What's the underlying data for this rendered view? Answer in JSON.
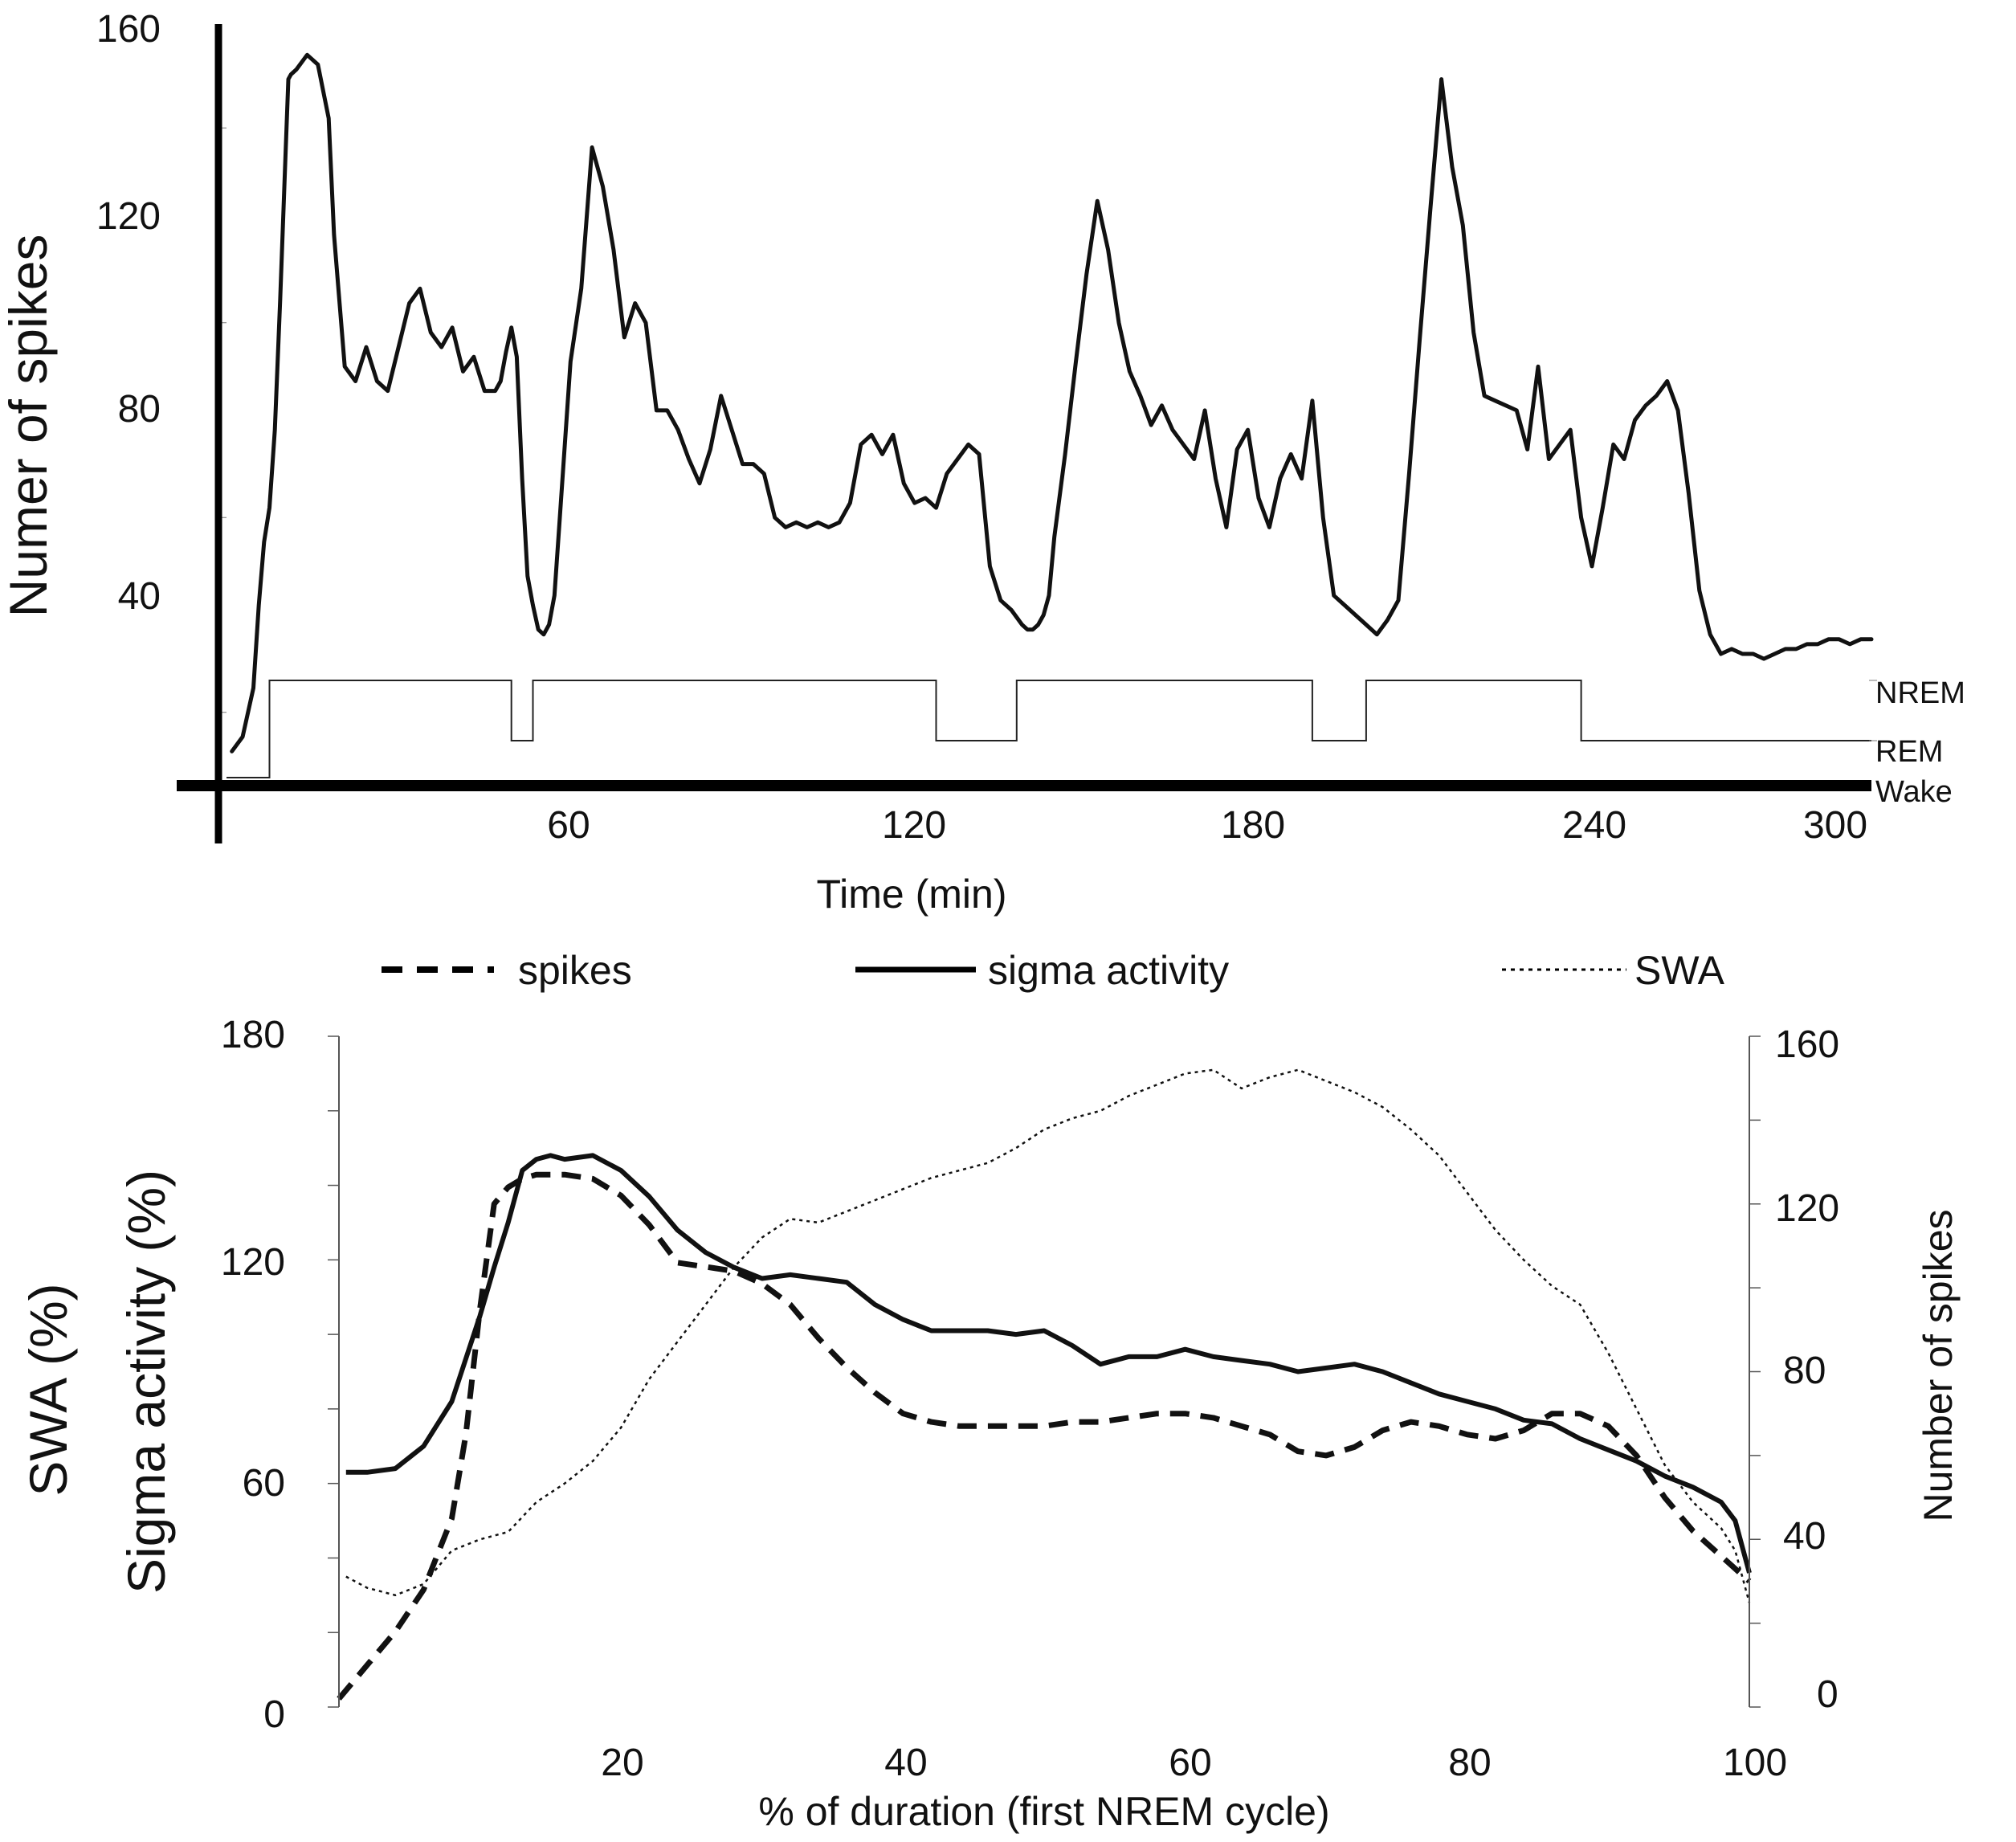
{
  "chart_data": [
    {
      "type": "line",
      "xlabel": "Time (min)",
      "ylabel": "Numer of spikes",
      "xlim": [
        0,
        306
      ],
      "ylim": [
        0,
        160
      ],
      "x_ticks": [
        60,
        120,
        180,
        240,
        300
      ],
      "y_ticks": [
        40,
        80,
        120,
        160
      ],
      "stage_labels": [
        "NREM",
        "REM",
        "Wake"
      ],
      "series": [
        {
          "x": [
            1,
            3,
            5,
            6,
            7,
            8,
            9,
            10,
            11,
            11.5,
            12,
            13,
            15,
            17,
            19,
            20,
            22,
            24,
            26,
            28,
            30,
            32,
            34,
            36,
            38,
            40,
            42,
            44,
            46,
            48,
            50,
            51,
            52,
            53,
            54,
            55,
            56,
            57,
            58,
            59,
            60,
            61,
            62,
            64,
            66,
            68,
            70,
            72,
            74,
            76,
            78,
            80,
            82,
            84,
            86,
            88,
            90,
            92,
            94,
            96,
            98,
            100,
            102,
            104,
            106,
            108,
            110,
            112,
            114,
            116,
            118,
            120,
            122,
            124,
            126,
            128,
            130,
            132,
            134,
            136,
            138,
            140,
            142,
            144,
            146,
            148,
            149,
            150,
            151,
            152,
            153,
            154,
            156,
            158,
            160,
            162,
            164,
            166,
            168,
            170,
            172,
            174,
            176,
            178,
            180,
            182,
            184,
            186,
            188,
            190,
            192,
            194,
            196,
            198,
            200,
            202,
            204,
            206,
            208,
            210,
            212,
            214,
            216,
            218,
            220,
            222,
            224,
            226,
            228,
            230,
            232,
            234,
            236,
            238,
            240,
            242,
            244,
            246,
            248,
            250,
            252,
            254,
            256,
            258,
            260,
            262,
            264,
            266,
            268,
            270,
            272,
            274,
            276,
            278,
            280,
            282,
            284,
            286,
            288,
            290,
            292,
            294,
            296,
            298,
            300,
            302,
            304,
            306
          ],
          "values": [
            12,
            15,
            25,
            42,
            55,
            62,
            78,
            105,
            135,
            150,
            151,
            152,
            155,
            153,
            142,
            118,
            91,
            88,
            95,
            88,
            86,
            95,
            104,
            107,
            98,
            95,
            99,
            90,
            93,
            86,
            86,
            88,
            94,
            99,
            93,
            68,
            48,
            42,
            37,
            36,
            38,
            44,
            60,
            92,
            107,
            136,
            128,
            115,
            97,
            104,
            100,
            82,
            82,
            78,
            72,
            67,
            74,
            85,
            78,
            71,
            71,
            69,
            60,
            58,
            59,
            58,
            59,
            58,
            59,
            63,
            75,
            77,
            73,
            77,
            67,
            63,
            64,
            62,
            69,
            72,
            75,
            73,
            50,
            43,
            41,
            38,
            37,
            37,
            38,
            40,
            44,
            56,
            73,
            92,
            110,
            125,
            115,
            100,
            90,
            85,
            79,
            83,
            78,
            75,
            72,
            82,
            68,
            58,
            74,
            78,
            64,
            58,
            68,
            73,
            68,
            84,
            60,
            44,
            42,
            40,
            38,
            36,
            39,
            43,
            69,
            97,
            124,
            150,
            132,
            120,
            98,
            85,
            84,
            83,
            82,
            74,
            91,
            72,
            75,
            78,
            60,
            50,
            62,
            75,
            72,
            80,
            83,
            85,
            88,
            82,
            65,
            45,
            36,
            32,
            33,
            32,
            32,
            31,
            32,
            33,
            33,
            34,
            34,
            35,
            35,
            34,
            35,
            35
          ]
        }
      ],
      "hypnogram": {
        "levels": {
          "NREM": 2,
          "REM": 1,
          "Wake": 0
        },
        "x": [
          0,
          8,
          8,
          53,
          53,
          57,
          57,
          132,
          132,
          147,
          147,
          202,
          202,
          212,
          212,
          252,
          252,
          282,
          282,
          306
        ],
        "values": [
          0,
          0,
          2,
          2,
          1,
          1,
          2,
          2,
          1,
          1,
          2,
          2,
          1,
          1,
          2,
          2,
          1,
          1,
          1,
          1
        ]
      }
    },
    {
      "type": "line",
      "xlabel": "% of duration (first NREM cycle)",
      "ylabel_left": [
        "SWA (%)",
        "Sigma activity (%)"
      ],
      "ylabel_right": "Number of spikes",
      "xlim": [
        0,
        100
      ],
      "ylim_left": [
        0,
        180
      ],
      "ylim_right": [
        0,
        160
      ],
      "x_ticks": [
        20,
        40,
        60,
        80,
        100
      ],
      "y_ticks_left": [
        0,
        60,
        120,
        180
      ],
      "y_ticks_right": [
        0,
        40,
        80,
        120,
        160
      ],
      "legend": {
        "placement": "top"
      },
      "series": [
        {
          "name": "spikes",
          "axis": "right",
          "style": "dashed",
          "x": [
            0,
            2,
            4,
            6,
            8,
            9,
            10,
            11,
            12,
            13,
            14,
            16,
            18,
            20,
            22,
            24,
            26,
            28,
            30,
            32,
            34,
            36,
            38,
            40,
            42,
            44,
            46,
            48,
            50,
            52,
            54,
            56,
            58,
            60,
            62,
            64,
            66,
            68,
            70,
            72,
            74,
            76,
            78,
            80,
            82,
            84,
            86,
            88,
            90,
            92,
            94,
            96,
            98,
            99,
            100
          ],
          "values": [
            2,
            10,
            18,
            28,
            45,
            65,
            95,
            120,
            124,
            126,
            127,
            127,
            126,
            122,
            115,
            106,
            105,
            104,
            101,
            96,
            88,
            81,
            75,
            70,
            68,
            67,
            67,
            67,
            67,
            68,
            68,
            69,
            70,
            70,
            69,
            67,
            65,
            61,
            60,
            62,
            66,
            68,
            67,
            65,
            64,
            66,
            70,
            70,
            67,
            60,
            50,
            42,
            36,
            33,
            30
          ]
        },
        {
          "name": "sigma activity",
          "axis": "left",
          "style": "solid",
          "x": [
            0.5,
            2,
            4,
            6,
            8,
            10,
            11,
            12,
            13,
            14,
            15,
            16,
            18,
            20,
            22,
            24,
            26,
            28,
            30,
            32,
            34,
            36,
            38,
            40,
            42,
            44,
            46,
            48,
            50,
            52,
            54,
            56,
            58,
            60,
            62,
            64,
            66,
            68,
            70,
            72,
            74,
            76,
            78,
            80,
            82,
            84,
            86,
            88,
            90,
            92,
            94,
            96,
            98,
            99,
            100
          ],
          "values": [
            63,
            63,
            64,
            70,
            82,
            105,
            118,
            130,
            144,
            147,
            148,
            147,
            148,
            144,
            137,
            128,
            122,
            118,
            115,
            116,
            115,
            114,
            108,
            104,
            101,
            101,
            101,
            100,
            101,
            97,
            92,
            94,
            94,
            96,
            94,
            93,
            92,
            90,
            91,
            92,
            90,
            87,
            84,
            82,
            80,
            77,
            76,
            72,
            69,
            66,
            62,
            59,
            55,
            50,
            36
          ]
        },
        {
          "name": "SWA",
          "axis": "left",
          "style": "dotted",
          "x": [
            0.5,
            2,
            4,
            6,
            8,
            10,
            12,
            14,
            16,
            18,
            20,
            22,
            24,
            26,
            28,
            30,
            32,
            34,
            36,
            38,
            40,
            42,
            44,
            46,
            48,
            50,
            52,
            54,
            56,
            58,
            60,
            62,
            64,
            66,
            68,
            70,
            72,
            74,
            76,
            78,
            80,
            82,
            84,
            86,
            88,
            90,
            92,
            94,
            96,
            98,
            99,
            100
          ],
          "values": [
            35,
            32,
            30,
            33,
            42,
            45,
            47,
            55,
            60,
            66,
            75,
            88,
            98,
            108,
            118,
            126,
            131,
            130,
            133,
            136,
            139,
            142,
            144,
            146,
            150,
            155,
            158,
            160,
            164,
            167,
            170,
            171,
            166,
            169,
            171,
            168,
            165,
            161,
            155,
            148,
            138,
            128,
            120,
            113,
            108,
            95,
            80,
            65,
            55,
            48,
            42,
            28
          ]
        }
      ]
    }
  ]
}
